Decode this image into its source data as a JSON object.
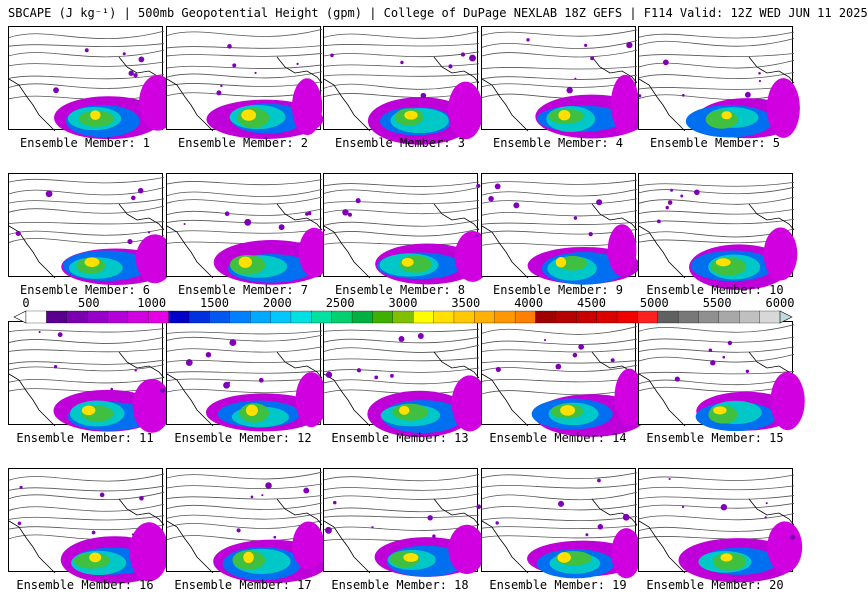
{
  "header": {
    "title": "SBCAPE (J kg⁻¹) | 500mb Geopotential Height (gpm) | College of DuPage NEXLAB 18Z GEFS | F114 Valid: 12Z WED JUN 11 2025"
  },
  "members": [
    {
      "label": "Ensemble Member: 1"
    },
    {
      "label": "Ensemble Member: 2"
    },
    {
      "label": "Ensemble Member: 3"
    },
    {
      "label": "Ensemble Member: 4"
    },
    {
      "label": "Ensemble Member: 5"
    },
    {
      "label": "Ensemble Member: 6"
    },
    {
      "label": "Ensemble Member: 7"
    },
    {
      "label": "Ensemble Member: 8"
    },
    {
      "label": "Ensemble Member: 9"
    },
    {
      "label": "Ensemble Member: 10"
    },
    {
      "label": "Ensemble Member: 11"
    },
    {
      "label": "Ensemble Member: 12"
    },
    {
      "label": "Ensemble Member: 13"
    },
    {
      "label": "Ensemble Member: 14"
    },
    {
      "label": "Ensemble Member: 15"
    },
    {
      "label": "Ensemble Member: 16"
    },
    {
      "label": "Ensemble Member: 17"
    },
    {
      "label": "Ensemble Member: 18"
    },
    {
      "label": "Ensemble Member: 19"
    },
    {
      "label": "Ensemble Member: 20"
    }
  ],
  "colorbar": {
    "ticks": [
      "0",
      "500",
      "1000",
      "1500",
      "2000",
      "2500",
      "3000",
      "3500",
      "4000",
      "4500",
      "5000",
      "5500",
      "6000"
    ],
    "colors": [
      "#ffffff",
      "#5a0090",
      "#7a00b0",
      "#9600c8",
      "#b400d8",
      "#d000e0",
      "#e600e6",
      "#0000c8",
      "#0030e0",
      "#0058f0",
      "#0080ff",
      "#00a8ff",
      "#00c8ff",
      "#00e0e0",
      "#00e0a0",
      "#00d070",
      "#00b040",
      "#40b000",
      "#80c000",
      "#ffff00",
      "#ffe000",
      "#ffc800",
      "#ffb000",
      "#ff9800",
      "#ff8000",
      "#a00000",
      "#b40000",
      "#c80000",
      "#dc0000",
      "#f00000",
      "#ff2020",
      "#606060",
      "#787878",
      "#909090",
      "#a8a8a8",
      "#c0c0c0",
      "#d8d8d8"
    ]
  }
}
